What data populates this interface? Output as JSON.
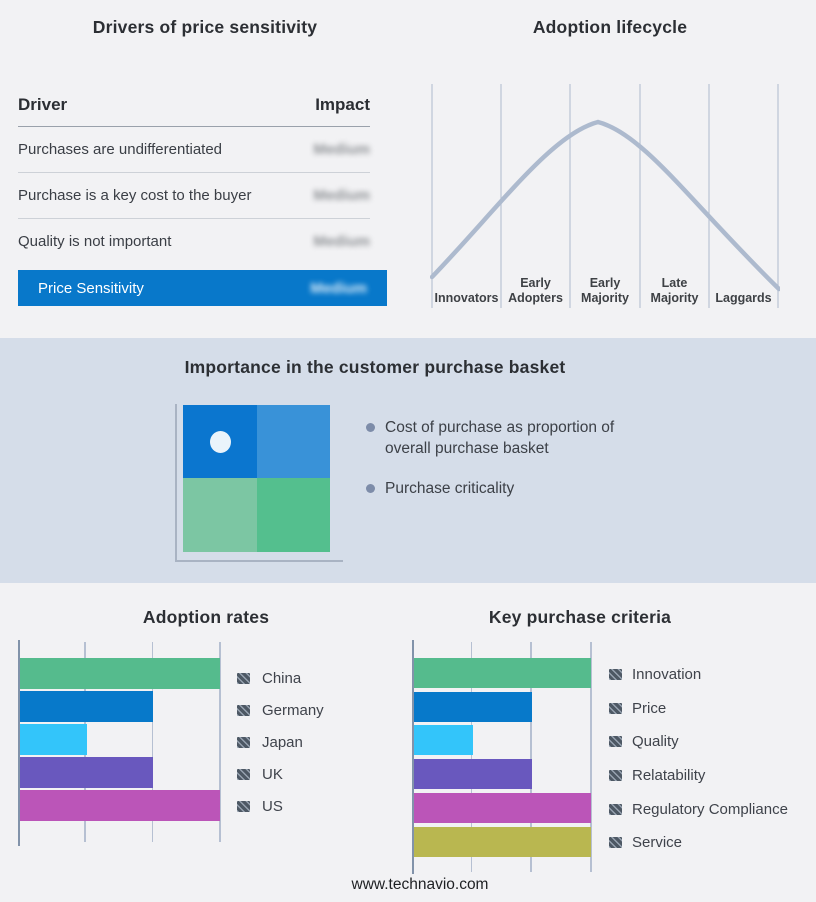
{
  "page": {
    "background": "#f2f2f4",
    "band_background": "#d5dde9"
  },
  "panels": {
    "drivers": {
      "title": "Drivers of price sensitivity",
      "col_driver": "Driver",
      "col_impact": "Impact",
      "rows": [
        {
          "driver": "Purchases are undifferentiated",
          "impact": "Medium"
        },
        {
          "driver": "Purchase is a key cost to the buyer",
          "impact": "Medium"
        },
        {
          "driver": "Quality is not important",
          "impact": "Medium"
        }
      ],
      "highlight": {
        "label": "Price Sensitivity",
        "impact": "Medium",
        "bg": "#0878ca"
      }
    },
    "lifecycle": {
      "title": "Adoption lifecycle",
      "stages": [
        "Innovators",
        "Early\nAdopters",
        "Early\nMajority",
        "Late\nMajority",
        "Laggards"
      ],
      "curve_color": "#adbace",
      "grid_color": "#b9c3d4"
    },
    "basket": {
      "title": "Importance in the customer purchase basket",
      "bullets": [
        "Cost of purchase as proportion of overall purchase basket",
        "Purchase criticality"
      ],
      "quadrant": {
        "tl": "#0b76cf",
        "tr": "#3992d8",
        "bl": "#7cc6a3",
        "br": "#54bf8e",
        "dot": "#eaf4fb"
      }
    },
    "adoption_rates": {
      "title": "Adoption rates",
      "max": 3,
      "items": [
        {
          "label": "China",
          "value": 3,
          "color": "#55bb8d"
        },
        {
          "label": "Germany",
          "value": 2,
          "color": "#0779ca"
        },
        {
          "label": "Japan",
          "value": 1,
          "color": "#33c5fa"
        },
        {
          "label": "UK",
          "value": 2,
          "color": "#6958be"
        },
        {
          "label": "US",
          "value": 3,
          "color": "#bb55b8"
        }
      ]
    },
    "purchase_criteria": {
      "title": "Key purchase criteria",
      "max": 3,
      "items": [
        {
          "label": "Innovation",
          "value": 3,
          "color": "#55bb8d"
        },
        {
          "label": "Price",
          "value": 2,
          "color": "#0779ca"
        },
        {
          "label": "Quality",
          "value": 1,
          "color": "#33c5fa"
        },
        {
          "label": "Relatability",
          "value": 2,
          "color": "#6958be"
        },
        {
          "label": "Regulatory Compliance",
          "value": 3,
          "color": "#bb55b8"
        },
        {
          "label": "Service",
          "value": 3,
          "color": "#b9b750"
        }
      ]
    }
  },
  "footer": {
    "url": "www.technavio.com"
  },
  "chart_data": [
    {
      "type": "table",
      "title": "Drivers of price sensitivity",
      "columns": [
        "Driver",
        "Impact"
      ],
      "rows": [
        [
          "Purchases are undifferentiated",
          "Medium"
        ],
        [
          "Purchase is a key cost to the buyer",
          "Medium"
        ],
        [
          "Quality is not important",
          "Medium"
        ],
        [
          "Price Sensitivity",
          "Medium"
        ]
      ],
      "note": "Impact values are shown blurred; Price Sensitivity row highlighted blue"
    },
    {
      "type": "line",
      "title": "Adoption lifecycle",
      "categories": [
        "Innovators",
        "Early Adopters",
        "Early Majority",
        "Late Majority",
        "Laggards"
      ],
      "description": "Bell-shaped adoption curve peaking at Early Majority",
      "relative_heights_at_segment_boundaries": [
        0.05,
        0.45,
        0.92,
        1.0,
        0.78,
        0.08
      ],
      "grid": "vertical segment dividers",
      "legend_position": "none"
    },
    {
      "type": "bar",
      "title": "Adoption rates",
      "orientation": "horizontal",
      "categories": [
        "China",
        "Germany",
        "Japan",
        "UK",
        "US"
      ],
      "values": [
        3,
        2,
        1,
        2,
        3
      ],
      "xlim": [
        0,
        3
      ],
      "xlabel": "",
      "ylabel": "",
      "grid": "vertical gridlines at 1, 2, 3",
      "legend_position": "right"
    },
    {
      "type": "bar",
      "title": "Key purchase criteria",
      "orientation": "horizontal",
      "categories": [
        "Innovation",
        "Price",
        "Quality",
        "Relatability",
        "Regulatory Compliance",
        "Service"
      ],
      "values": [
        3,
        2,
        1,
        2,
        3,
        3
      ],
      "xlim": [
        0,
        3
      ],
      "xlabel": "",
      "ylabel": "",
      "grid": "vertical gridlines at 1, 2, 3",
      "legend_position": "right"
    }
  ]
}
